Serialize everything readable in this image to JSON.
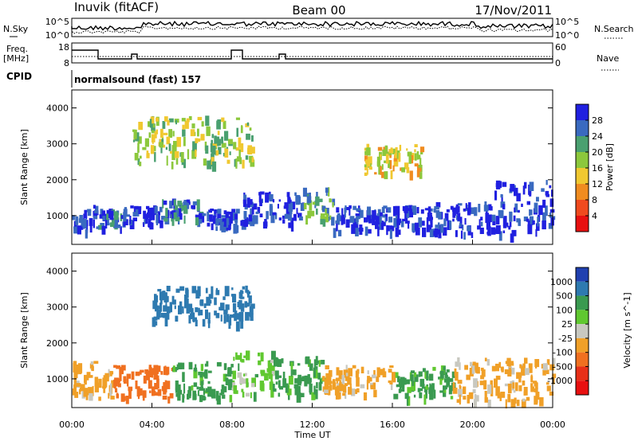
{
  "header": {
    "station": "Inuvik (fitACF)",
    "beam": "Beam 00",
    "date": "17/Nov/2011"
  },
  "noise_panel": {
    "left_label": "N.Sky",
    "right_label": "N.Search",
    "left_ticks": [
      "10^5",
      "10^0"
    ],
    "right_ticks": [
      "10^5",
      "10^0"
    ]
  },
  "freq_panel": {
    "left_label_1": "Freq.",
    "left_label_2": "[MHz]",
    "right_label": "Nave",
    "left_ticks": [
      "18",
      "8"
    ],
    "right_ticks": [
      "60",
      "0"
    ]
  },
  "cpid_panel": {
    "label": "CPID",
    "program": "normalsound (fast) 157"
  },
  "x_axis": {
    "label": "Time UT",
    "ticks": [
      "00:00",
      "04:00",
      "08:00",
      "12:00",
      "16:00",
      "20:00",
      "00:00"
    ]
  },
  "chart_data": [
    {
      "type": "heatmap",
      "name": "power",
      "ylabel": "Slant Range [km]",
      "xlabel": "Time UT",
      "yticks": [
        "1000",
        "2000",
        "3000",
        "4000"
      ],
      "ylim": [
        200,
        4500
      ],
      "colorbar_label": "Power [dB]",
      "colorbar_ticks": [
        "4",
        "8",
        "12",
        "16",
        "20",
        "24",
        "28"
      ],
      "colors": [
        "#2020e0",
        "#3a6ac0",
        "#4aa070",
        "#8cc83c",
        "#f0c830",
        "#f08c20",
        "#f04a1e",
        "#e81010"
      ],
      "bands": [
        {
          "t0": 0.0,
          "t1": 1.2,
          "r0": 600,
          "r1": 1300,
          "level": 28
        },
        {
          "t0": 1.2,
          "t1": 2.5,
          "r0": 700,
          "r1": 1200,
          "level": 24
        },
        {
          "t0": 2.5,
          "t1": 4.5,
          "r0": 800,
          "r1": 1300,
          "level": 28
        },
        {
          "t0": 4.5,
          "t1": 6.5,
          "r0": 900,
          "r1": 1500,
          "level": 24
        },
        {
          "t0": 6.5,
          "t1": 8.5,
          "r0": 700,
          "r1": 1200,
          "level": 28
        },
        {
          "t0": 8.5,
          "t1": 11.5,
          "r0": 800,
          "r1": 1700,
          "level": 28
        },
        {
          "t0": 11.5,
          "t1": 13.0,
          "r0": 900,
          "r1": 1800,
          "level": 20
        },
        {
          "t0": 13.0,
          "t1": 18.0,
          "r0": 600,
          "r1": 1300,
          "level": 28
        },
        {
          "t0": 18.0,
          "t1": 21.0,
          "r0": 500,
          "r1": 1400,
          "level": 28
        },
        {
          "t0": 21.0,
          "t1": 24.0,
          "r0": 500,
          "r1": 2000,
          "level": 28
        },
        {
          "t0": 3.0,
          "t1": 9.0,
          "r0": 2500,
          "r1": 3800,
          "level": 16
        },
        {
          "t0": 14.5,
          "t1": 17.5,
          "r0": 2200,
          "r1": 3000,
          "level": 12
        }
      ]
    },
    {
      "type": "heatmap",
      "name": "velocity",
      "ylabel": "Slant Range [km]",
      "xlabel": "Time UT",
      "yticks": [
        "1000",
        "2000",
        "3000",
        "4000"
      ],
      "ylim": [
        200,
        4500
      ],
      "colorbar_label": "Velocity [m s^-1]",
      "colorbar_ticks": [
        "1000",
        "500",
        "100",
        "25",
        "-25",
        "-100",
        "-500",
        "-1000"
      ],
      "colors": [
        "#2040b0",
        "#2e7ab0",
        "#3a9a50",
        "#60c830",
        "#c8c8c0",
        "#f0a028",
        "#f07020",
        "#e83018",
        "#e81010"
      ],
      "bands": [
        {
          "t0": 0.0,
          "t1": 2.0,
          "r0": 500,
          "r1": 1500,
          "level": -100
        },
        {
          "t0": 2.0,
          "t1": 5.0,
          "r0": 500,
          "r1": 1400,
          "level": -500
        },
        {
          "t0": 5.0,
          "t1": 8.0,
          "r0": 500,
          "r1": 1500,
          "level": 100
        },
        {
          "t0": 8.0,
          "t1": 10.0,
          "r0": 600,
          "r1": 1800,
          "level": 25
        },
        {
          "t0": 10.0,
          "t1": 12.5,
          "r0": 600,
          "r1": 1700,
          "level": 100
        },
        {
          "t0": 12.5,
          "t1": 16.0,
          "r0": 600,
          "r1": 1400,
          "level": -100
        },
        {
          "t0": 16.0,
          "t1": 19.0,
          "r0": 500,
          "r1": 1400,
          "level": 100
        },
        {
          "t0": 19.0,
          "t1": 24.0,
          "r0": 400,
          "r1": 1600,
          "level": -100
        },
        {
          "t0": 4.0,
          "t1": 9.0,
          "r0": 2600,
          "r1": 3600,
          "level": 500
        }
      ]
    }
  ]
}
